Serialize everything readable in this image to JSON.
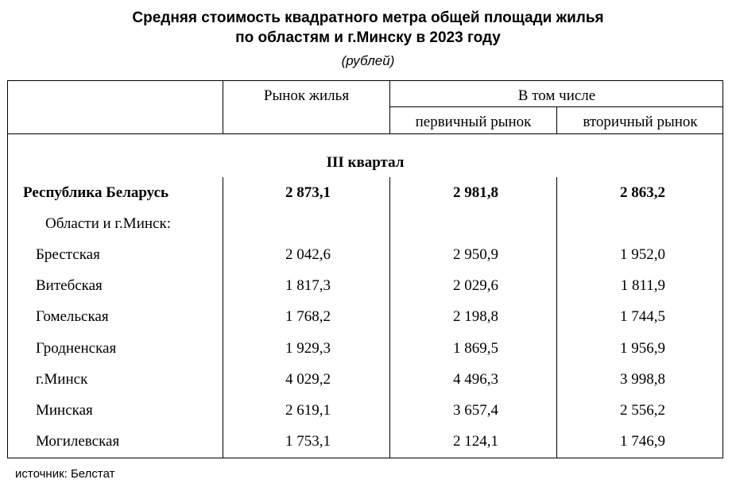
{
  "title_line1": "Средняя стоимость квадратного метра общей площади жилья",
  "title_line2": "по областям и г.Минску в 2023 году",
  "unit": "(рублей)",
  "headers": {
    "market": "Рынок жилья",
    "including": "В том числе",
    "primary": "первичный рынок",
    "secondary": "вторичный рынок"
  },
  "section": "III квартал",
  "total": {
    "name": "Республика Беларусь",
    "market": "2 873,1",
    "primary": "2 981,8",
    "secondary": "2 863,2"
  },
  "regions_label": "Области и г.Минск:",
  "rows": [
    {
      "name": "Брестская",
      "market": "2 042,6",
      "primary": "2 950,9",
      "secondary": "1 952,0"
    },
    {
      "name": "Витебская",
      "market": "1 817,3",
      "primary": "2 029,6",
      "secondary": "1 811,9"
    },
    {
      "name": "Гомельская",
      "market": "1 768,2",
      "primary": "2 198,8",
      "secondary": "1 744,5"
    },
    {
      "name": "Гродненская",
      "market": "1 929,3",
      "primary": "1 869,5",
      "secondary": "1 956,9"
    },
    {
      "name": "г.Минск",
      "market": "4 029,2",
      "primary": "4 496,3",
      "secondary": "3 998,8"
    },
    {
      "name": "Минская",
      "market": "2 619,1",
      "primary": "3 657,4",
      "secondary": "2 556,2"
    },
    {
      "name": "Могилевская",
      "market": "1 753,1",
      "primary": "2 124,1",
      "secondary": "1 746,9"
    }
  ],
  "source": "источник: Белстат"
}
